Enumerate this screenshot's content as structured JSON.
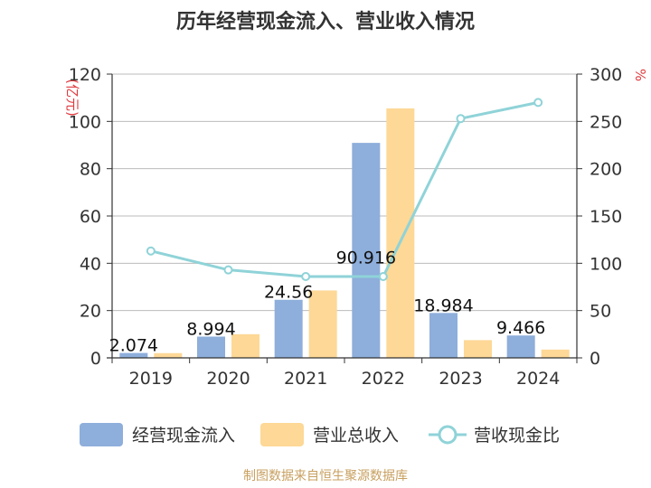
{
  "chart_data": {
    "type": "bar",
    "title": "历年经营现金流入、营业收入情况",
    "categories": [
      "2019",
      "2020",
      "2021",
      "2022",
      "2023",
      "2024"
    ],
    "y_left": {
      "unit": "(亿元)",
      "ylim": [
        0,
        120
      ],
      "ticks": [
        "0",
        "20",
        "40",
        "60",
        "80",
        "100",
        "120"
      ]
    },
    "y_right": {
      "unit": "%",
      "ylim": [
        0,
        300
      ],
      "ticks": [
        "0",
        "50",
        "100",
        "150",
        "200",
        "250",
        "300"
      ]
    },
    "series": [
      {
        "name": "经营现金流入",
        "type": "bar",
        "axis": "left",
        "color": "#8eaedb",
        "values": [
          2.074,
          8.994,
          24.56,
          90.916,
          18.984,
          9.466
        ],
        "labels": [
          "2.074",
          "8.994",
          "24.56",
          "90.916",
          "18.984",
          "9.466"
        ]
      },
      {
        "name": "营业总收入",
        "type": "bar",
        "axis": "left",
        "color": "#fdd896",
        "values": [
          2.0,
          10.0,
          28.5,
          105.5,
          7.5,
          3.5
        ]
      },
      {
        "name": "营收现金比",
        "type": "line",
        "axis": "right",
        "color": "#8fd3d8",
        "values": [
          113,
          93,
          86,
          86,
          253,
          270
        ]
      }
    ],
    "grid": true,
    "legend_position": "bottom"
  },
  "source": "制图数据来自恒生聚源数据库"
}
